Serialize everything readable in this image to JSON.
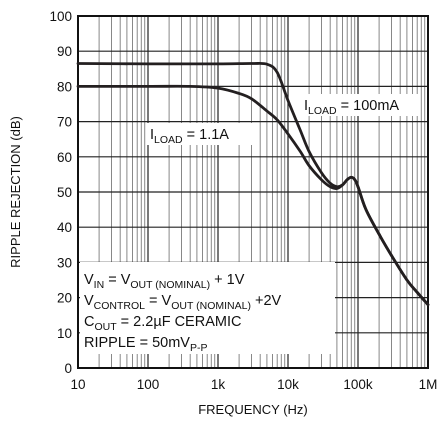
{
  "chart_data": {
    "type": "line",
    "title": "",
    "xlabel": "FREQUENCY (Hz)",
    "ylabel": "RIPPLE REJECTION (dB)",
    "x_scale": "log",
    "xlim": [
      10,
      1000000
    ],
    "ylim": [
      0,
      100
    ],
    "grid": true,
    "x_tick_labels": [
      "10",
      "100",
      "1k",
      "10k",
      "100k",
      "1M"
    ],
    "y_tick_labels": [
      "0",
      "10",
      "20",
      "30",
      "40",
      "50",
      "60",
      "70",
      "80",
      "90",
      "100"
    ],
    "series": [
      {
        "label_main": "I",
        "label_sub": "LOAD",
        "label_tail": " = 100mA",
        "color": "#231f20",
        "x": [
          10,
          100,
          1000,
          3000,
          5000,
          7000,
          10000,
          15000,
          20000,
          30000,
          40000,
          50000,
          60000,
          70000,
          80000,
          90000,
          100000,
          130000,
          200000,
          300000,
          500000,
          700000,
          1000000
        ],
        "y": [
          86.5,
          86.4,
          86.4,
          86.5,
          86.3,
          84.0,
          76.0,
          67.5,
          61.5,
          55.5,
          52.5,
          51.5,
          52.0,
          53.5,
          54.2,
          53.5,
          51.5,
          45.0,
          38.0,
          32.0,
          25.0,
          21.5,
          18.0
        ]
      },
      {
        "label_main": "I",
        "label_sub": "LOAD",
        "label_tail": " = 1.1A",
        "color": "#231f20",
        "x": [
          10,
          100,
          400,
          1000,
          2000,
          3000,
          5000,
          7000,
          10000,
          15000,
          20000,
          30000,
          40000,
          50000,
          60000,
          70000,
          80000,
          90000,
          100000,
          130000,
          200000,
          300000,
          500000,
          700000,
          1000000
        ],
        "y": [
          80.0,
          80.0,
          80.0,
          79.5,
          78.0,
          76.5,
          73.0,
          70.5,
          66.5,
          61.5,
          57.5,
          53.5,
          51.5,
          51.0,
          52.0,
          53.5,
          54.2,
          53.5,
          51.5,
          45.0,
          38.0,
          32.0,
          25.0,
          21.5,
          18.0
        ]
      }
    ],
    "conditions": [
      {
        "main": "V",
        "sub": "IN",
        "rest": " = V",
        "sub2": "OUT (NOMINAL)",
        "tail": " + 1V"
      },
      {
        "main": "V",
        "sub": "CONTROL",
        "rest": " = V",
        "sub2": "OUT (NOMINAL)",
        "tail": " +2V"
      },
      {
        "main": "C",
        "sub": "OUT",
        "rest": " = 2.2µF CERAMIC",
        "sub2": "",
        "tail": ""
      },
      {
        "main": "RIPPLE = 50mV",
        "sub": "P-P",
        "rest": "",
        "sub2": "",
        "tail": ""
      }
    ]
  }
}
